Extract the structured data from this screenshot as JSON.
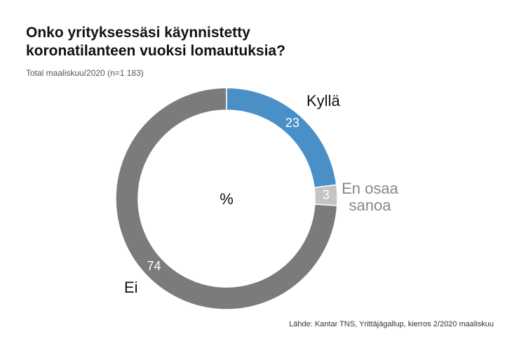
{
  "chart_data": {
    "type": "donut",
    "title": "Onko yrityksessäsi käynnistetty koronatilanteen vuoksi lomautuksia?",
    "subtitle": "Total maaliskuu/2020 (n=1 183)",
    "center_label": "%",
    "categories": [
      "Kyllä",
      "En osaa sanoa",
      "Ei"
    ],
    "values": [
      23,
      3,
      74
    ],
    "colors": [
      "#4a90c8",
      "#c4c4c4",
      "#7b7b7b"
    ],
    "source": "Lähde: Kantar TNS, Yrittäjägallup, kierros 2/2020 maaliskuu"
  }
}
